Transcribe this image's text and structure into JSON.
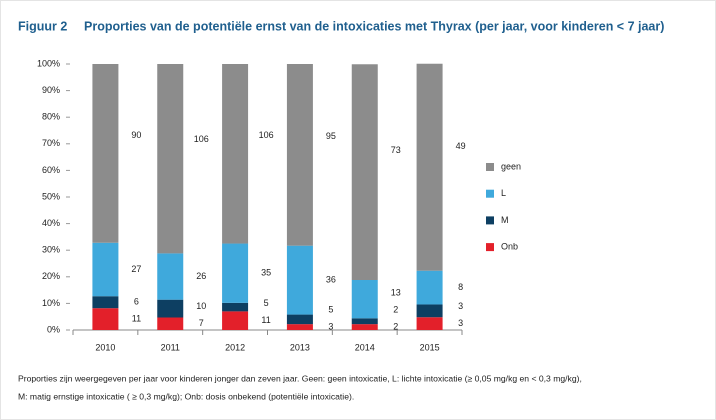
{
  "chart_data": {
    "type": "stacked_bar_100",
    "figure_label": "Figuur 2",
    "title": "Proporties van de potentiële ernst van de intoxicaties met Thyrax (per jaar, voor kinderen < 7 jaar)",
    "categories": [
      "2010",
      "2011",
      "2012",
      "2013",
      "2014",
      "2015"
    ],
    "series": [
      {
        "name": "Onb",
        "color": "#e3202a",
        "values": [
          8.2,
          4.7,
          7.0,
          2.2,
          2.2,
          4.8
        ],
        "counts": [
          11,
          7,
          11,
          3,
          2,
          3
        ]
      },
      {
        "name": "M",
        "color": "#0d3f62",
        "values": [
          4.5,
          6.7,
          3.2,
          3.6,
          2.2,
          4.8
        ],
        "counts": [
          6,
          10,
          5,
          5,
          2,
          3
        ]
      },
      {
        "name": "L",
        "color": "#3fa9dc",
        "values": [
          20.1,
          17.4,
          22.3,
          25.9,
          14.4,
          12.7
        ],
        "counts": [
          27,
          26,
          35,
          36,
          13,
          8
        ]
      },
      {
        "name": "geen",
        "color": "#8c8c8c",
        "values": [
          67.2,
          71.2,
          67.5,
          68.3,
          81.1,
          77.8
        ],
        "counts": [
          90,
          106,
          106,
          95,
          73,
          49
        ]
      }
    ],
    "ylim": [
      0,
      100
    ],
    "yticks": [
      {
        "value": 0,
        "label": "0%"
      },
      {
        "value": 10,
        "label": "10%"
      },
      {
        "value": 20,
        "label": "20%"
      },
      {
        "value": 30,
        "label": "30%"
      },
      {
        "value": 40,
        "label": "40%"
      },
      {
        "value": 50,
        "label": "50%"
      },
      {
        "value": 60,
        "label": "60%"
      },
      {
        "value": 70,
        "label": "70%"
      },
      {
        "value": 80,
        "label": "80%"
      },
      {
        "value": 90,
        "label": "90%"
      },
      {
        "value": 100,
        "label": "100%"
      }
    ],
    "grid": false,
    "legend": "right",
    "footnote": [
      "Proporties zijn weergegeven per jaar voor kinderen jonger dan zeven jaar. Geen: geen intoxicatie, L: lichte intoxicatie (≥ 0,05 mg/kg en < 0,3 mg/kg),",
      "M: matig ernstige intoxicatie ( ≥ 0,3 mg/kg); Onb: dosis onbekend (potentiële intoxicatie)."
    ]
  }
}
